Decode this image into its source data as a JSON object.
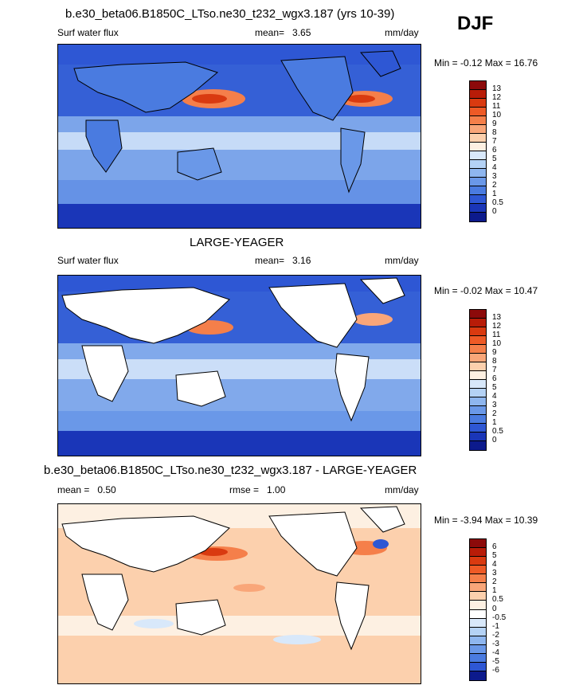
{
  "season": "DJF",
  "panel1": {
    "title": "b.e30_beta06.B1850C_LTso.ne30_t232_wgx3.187 (yrs 10-39)",
    "variable": "Surf water flux",
    "mean_label": "mean=",
    "mean_value": "3.65",
    "units": "mm/day",
    "min_label": "Min =",
    "min_value": "-0.12",
    "max_label": "Max =",
    "max_value": "16.76"
  },
  "panel2": {
    "title": "LARGE-YEAGER",
    "variable": "Surf water flux",
    "mean_label": "mean=",
    "mean_value": "3.16",
    "units": "mm/day",
    "min_label": "Min =",
    "min_value": "-0.02",
    "max_label": "Max =",
    "max_value": "10.47"
  },
  "panel3": {
    "title": "b.e30_beta06.B1850C_LTso.ne30_t232_wgx3.187 - LARGE-YEAGER",
    "mean_label": "mean =",
    "mean_value": "0.50",
    "rmse_label": "rmse =",
    "rmse_value": "1.00",
    "units": "mm/day",
    "min_label": "Min =",
    "min_value": "-3.94",
    "max_label": "Max =",
    "max_value": "10.39"
  },
  "colorbar_abs": {
    "labels": [
      "13",
      "12",
      "11",
      "10",
      "9",
      "8",
      "7",
      "6",
      "5",
      "4",
      "3",
      "2",
      "1",
      "0.5",
      "0"
    ],
    "colors": [
      "#8c0a0a",
      "#b81c08",
      "#d93a10",
      "#ee5a26",
      "#f57f4a",
      "#f9a679",
      "#fcd0ad",
      "#fdf0e2",
      "#d8e8fa",
      "#b4d2f5",
      "#8eb6ef",
      "#6a98e8",
      "#4a7be0",
      "#2e57d4",
      "#1a36b8",
      "#0c1a8c"
    ]
  },
  "colorbar_diff": {
    "labels": [
      "6",
      "5",
      "4",
      "3",
      "2",
      "1",
      "0.5",
      "0",
      "-0.5",
      "-1",
      "-2",
      "-3",
      "-4",
      "-5",
      "-6"
    ],
    "colors": [
      "#8c0a0a",
      "#b81c08",
      "#d93a10",
      "#ee5a26",
      "#f57f4a",
      "#f9a679",
      "#fcd0ad",
      "#fdf0e2",
      "#ffffff",
      "#d8e8fa",
      "#b4d2f5",
      "#8eb6ef",
      "#6a98e8",
      "#4a7be0",
      "#2e57d4",
      "#0c1a8c"
    ]
  }
}
